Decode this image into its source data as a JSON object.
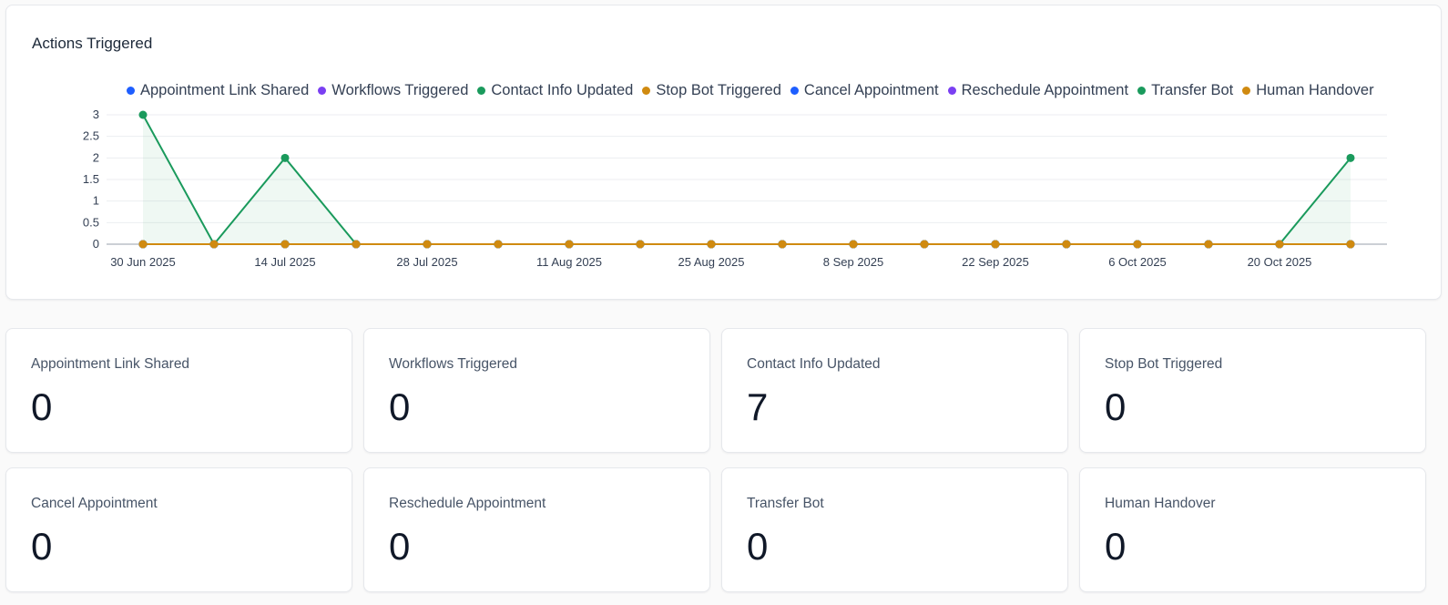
{
  "chart_card": {
    "title": "Actions Triggered"
  },
  "chart_data": {
    "type": "line",
    "title": "Actions Triggered",
    "xlabel": "",
    "ylabel": "",
    "ylim": [
      0,
      3
    ],
    "y_ticks": [
      "0",
      "0.5",
      "1",
      "1.5",
      "2",
      "2.5",
      "3"
    ],
    "x_tick_labels": [
      "30 Jun 2025",
      "14 Jul 2025",
      "28 Jul 2025",
      "11 Aug 2025",
      "25 Aug 2025",
      "8 Sep 2025",
      "22 Sep 2025",
      "6 Oct 2025",
      "20 Oct 2025"
    ],
    "x": [
      "30 Jun 2025",
      "7 Jul 2025",
      "14 Jul 2025",
      "21 Jul 2025",
      "28 Jul 2025",
      "4 Aug 2025",
      "11 Aug 2025",
      "18 Aug 2025",
      "25 Aug 2025",
      "1 Sep 2025",
      "8 Sep 2025",
      "15 Sep 2025",
      "22 Sep 2025",
      "29 Sep 2025",
      "6 Oct 2025",
      "13 Oct 2025",
      "20 Oct 2025",
      "27 Oct 2025"
    ],
    "legend_position": "top",
    "grid": true,
    "series": [
      {
        "name": "Appointment Link Shared",
        "color": "#1e5eff",
        "values": [
          0,
          0,
          0,
          0,
          0,
          0,
          0,
          0,
          0,
          0,
          0,
          0,
          0,
          0,
          0,
          0,
          0,
          0
        ]
      },
      {
        "name": "Workflows Triggered",
        "color": "#7a3ff2",
        "values": [
          0,
          0,
          0,
          0,
          0,
          0,
          0,
          0,
          0,
          0,
          0,
          0,
          0,
          0,
          0,
          0,
          0,
          0
        ]
      },
      {
        "name": "Contact Info Updated",
        "color": "#1a9a5c",
        "values": [
          3,
          0,
          2,
          0,
          0,
          0,
          0,
          0,
          0,
          0,
          0,
          0,
          0,
          0,
          0,
          0,
          0,
          2
        ]
      },
      {
        "name": "Stop Bot Triggered",
        "color": "#d08a10",
        "values": [
          0,
          0,
          0,
          0,
          0,
          0,
          0,
          0,
          0,
          0,
          0,
          0,
          0,
          0,
          0,
          0,
          0,
          0
        ]
      },
      {
        "name": "Cancel Appointment",
        "color": "#1e5eff",
        "values": [
          0,
          0,
          0,
          0,
          0,
          0,
          0,
          0,
          0,
          0,
          0,
          0,
          0,
          0,
          0,
          0,
          0,
          0
        ]
      },
      {
        "name": "Reschedule Appointment",
        "color": "#7a3ff2",
        "values": [
          0,
          0,
          0,
          0,
          0,
          0,
          0,
          0,
          0,
          0,
          0,
          0,
          0,
          0,
          0,
          0,
          0,
          0
        ]
      },
      {
        "name": "Transfer Bot",
        "color": "#1a9a5c",
        "values": [
          0,
          0,
          0,
          0,
          0,
          0,
          0,
          0,
          0,
          0,
          0,
          0,
          0,
          0,
          0,
          0,
          0,
          0
        ]
      },
      {
        "name": "Human Handover",
        "color": "#d08a10",
        "values": [
          0,
          0,
          0,
          0,
          0,
          0,
          0,
          0,
          0,
          0,
          0,
          0,
          0,
          0,
          0,
          0,
          0,
          0
        ]
      }
    ]
  },
  "stats": [
    {
      "label": "Appointment Link Shared",
      "value": "0"
    },
    {
      "label": "Workflows Triggered",
      "value": "0"
    },
    {
      "label": "Contact Info Updated",
      "value": "7"
    },
    {
      "label": "Stop Bot Triggered",
      "value": "0"
    },
    {
      "label": "Cancel Appointment",
      "value": "0"
    },
    {
      "label": "Reschedule Appointment",
      "value": "0"
    },
    {
      "label": "Transfer Bot",
      "value": "0"
    },
    {
      "label": "Human Handover",
      "value": "0"
    }
  ]
}
